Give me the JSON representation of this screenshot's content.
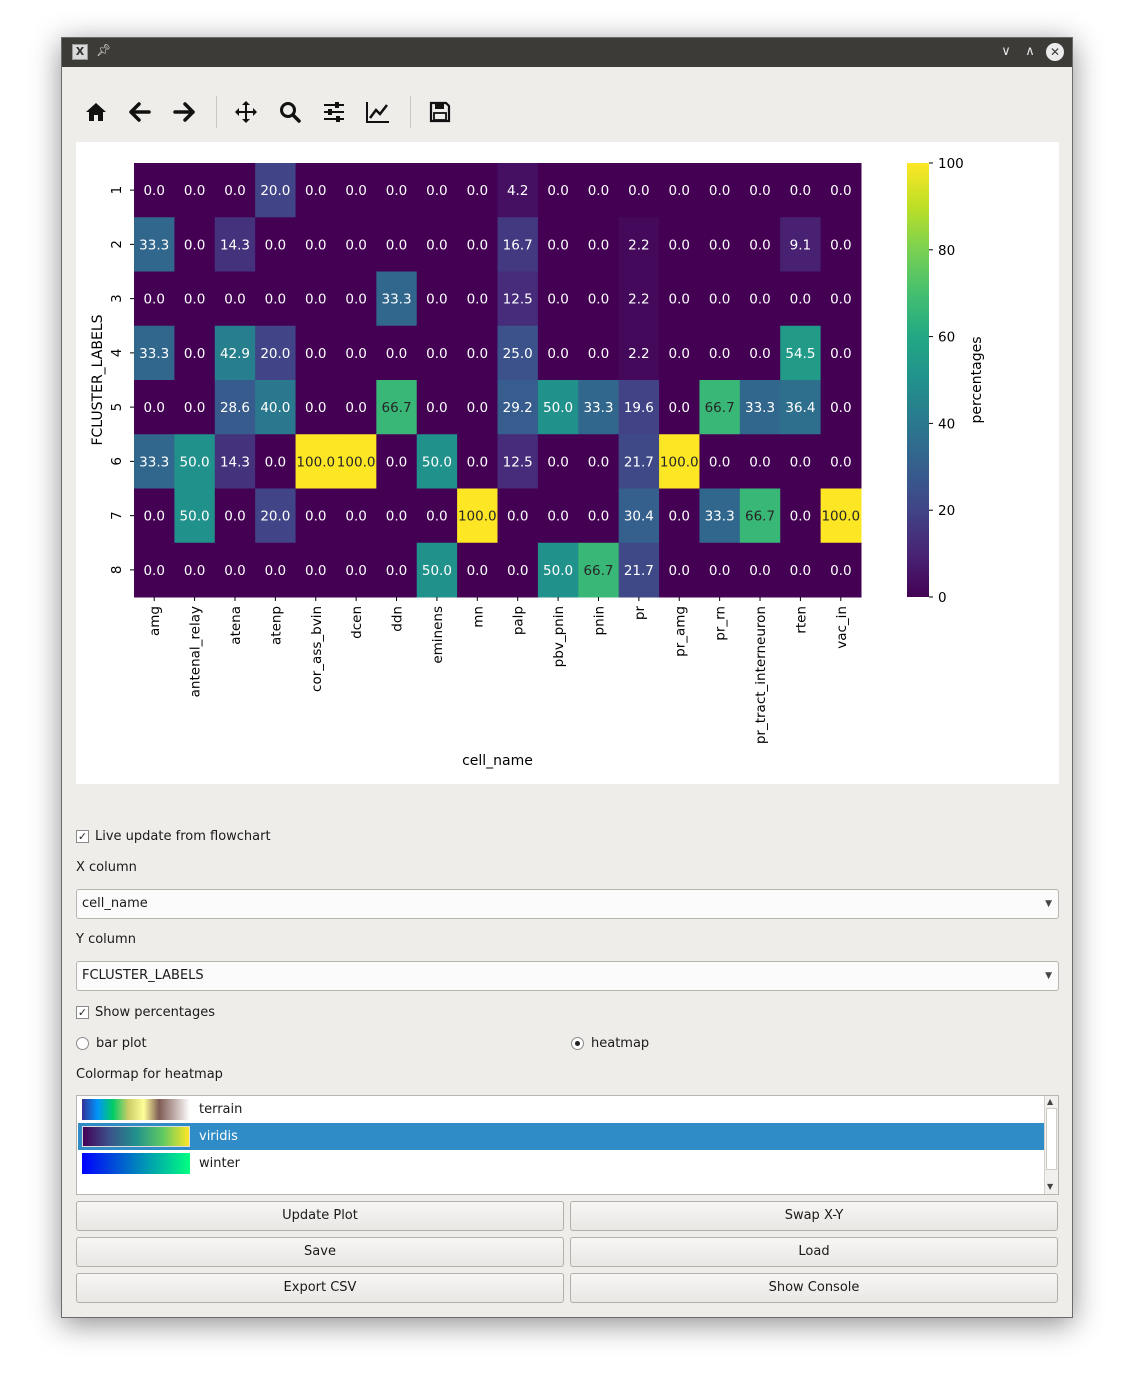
{
  "toolbar": {
    "tools": [
      "home-icon",
      "back-arrow-icon",
      "forward-arrow-icon",
      "pan-icon",
      "zoom-icon",
      "configure-subplots-icon",
      "edit-axis-icon",
      "save-icon"
    ]
  },
  "chart_data": {
    "type": "heatmap",
    "xlabel": "cell_name",
    "ylabel": "FCLUSTER_LABELS",
    "colorbar_label": "percentages",
    "colorbar_ticks": [
      0,
      20,
      40,
      60,
      80,
      100
    ],
    "colormap": "viridis",
    "x": [
      "amg",
      "antenal_relay",
      "atena",
      "atenp",
      "cor_ass_bvin",
      "dcen",
      "ddn",
      "eminens",
      "mn",
      "palp",
      "pbv_pnin",
      "pnin",
      "pr",
      "pr_amg",
      "pr_rn",
      "pr_tract_interneuron",
      "rten",
      "vac_in"
    ],
    "y": [
      "1",
      "2",
      "3",
      "4",
      "5",
      "6",
      "7",
      "8"
    ],
    "values": [
      [
        0.0,
        0.0,
        0.0,
        20.0,
        0.0,
        0.0,
        0.0,
        0.0,
        0.0,
        4.2,
        0.0,
        0.0,
        0.0,
        0.0,
        0.0,
        0.0,
        0.0,
        0.0
      ],
      [
        33.3,
        0.0,
        14.3,
        0.0,
        0.0,
        0.0,
        0.0,
        0.0,
        0.0,
        16.7,
        0.0,
        0.0,
        2.2,
        0.0,
        0.0,
        0.0,
        9.1,
        0.0
      ],
      [
        0.0,
        0.0,
        0.0,
        0.0,
        0.0,
        0.0,
        33.3,
        0.0,
        0.0,
        12.5,
        0.0,
        0.0,
        2.2,
        0.0,
        0.0,
        0.0,
        0.0,
        0.0
      ],
      [
        33.3,
        0.0,
        42.9,
        20.0,
        0.0,
        0.0,
        0.0,
        0.0,
        0.0,
        25.0,
        0.0,
        0.0,
        2.2,
        0.0,
        0.0,
        0.0,
        54.5,
        0.0
      ],
      [
        0.0,
        0.0,
        28.6,
        40.0,
        0.0,
        0.0,
        66.7,
        0.0,
        0.0,
        29.2,
        50.0,
        33.3,
        19.6,
        0.0,
        66.7,
        33.3,
        36.4,
        0.0
      ],
      [
        33.3,
        50.0,
        14.3,
        0.0,
        100.0,
        100.0,
        0.0,
        50.0,
        0.0,
        12.5,
        0.0,
        0.0,
        21.7,
        100.0,
        0.0,
        0.0,
        0.0,
        0.0
      ],
      [
        0.0,
        50.0,
        0.0,
        20.0,
        0.0,
        0.0,
        0.0,
        0.0,
        100.0,
        0.0,
        0.0,
        0.0,
        30.4,
        0.0,
        33.3,
        66.7,
        0.0,
        100.0
      ],
      [
        0.0,
        0.0,
        0.0,
        0.0,
        0.0,
        0.0,
        0.0,
        50.0,
        0.0,
        0.0,
        50.0,
        66.7,
        21.7,
        0.0,
        0.0,
        0.0,
        0.0,
        0.0
      ]
    ],
    "vmin": 0,
    "vmax": 100
  },
  "controls": {
    "live_update_label": "Live update from flowchart",
    "live_update_checked": true,
    "x_column_label": "X column",
    "x_column_value": "cell_name",
    "y_column_label": "Y column",
    "y_column_value": "FCLUSTER_LABELS",
    "show_percentages_label": "Show percentages",
    "show_percentages_checked": true,
    "bar_plot_label": "bar plot",
    "heatmap_label": "heatmap",
    "selected_plot": "heatmap",
    "colormap_label": "Colormap for heatmap",
    "colormaps": [
      {
        "name": "terrain",
        "selected": false
      },
      {
        "name": "viridis",
        "selected": true
      },
      {
        "name": "winter",
        "selected": false
      }
    ]
  },
  "buttons": {
    "update_plot": "Update Plot",
    "swap_xy": "Swap X-Y",
    "save": "Save",
    "load": "Load",
    "export_csv": "Export CSV",
    "show_console": "Show Console"
  },
  "colors": {
    "selection": "#308cc6",
    "titlebar": "#3c3b37"
  }
}
